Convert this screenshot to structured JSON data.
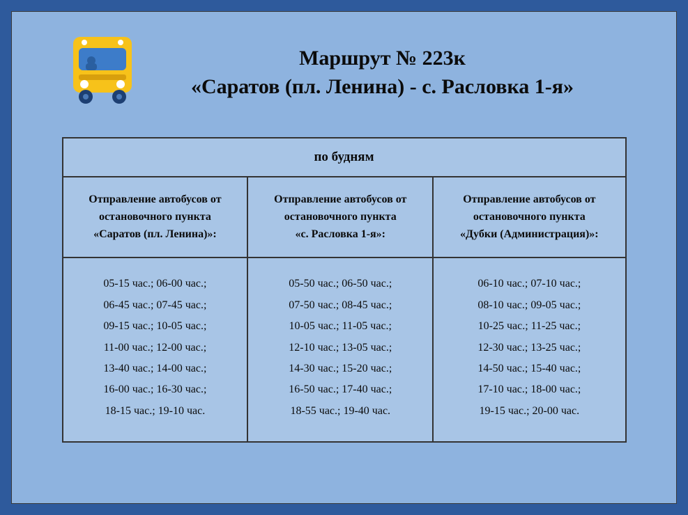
{
  "colors": {
    "outer_frame": "#2e5a9c",
    "inner_bg": "#8eb3df",
    "table_bg": "#a8c5e6",
    "border": "#333333",
    "text": "#0b0b0b",
    "bus_body": "#f7c21a",
    "bus_window": "#3d7cc9",
    "bus_wheel": "#1d3f72"
  },
  "title": {
    "line1": "Маршрут  № 223к",
    "line2": "«Саратов (пл. Ленина) - с. Расловка 1-я»"
  },
  "days_header": "по будням",
  "columns": [
    {
      "header_l1": "Отправление автобусов от",
      "header_l2": "остановочного пункта",
      "header_l3": "«Саратов (пл. Ленина)»:",
      "times": [
        "05-15 час.; 06-00 час.;",
        "06-45 час.; 07-45 час.;",
        "09-15 час.; 10-05 час.;",
        "11-00 час.; 12-00 час.;",
        "13-40 час.; 14-00 час.;",
        "16-00 час.; 16-30 час.;",
        "18-15 час.; 19-10 час."
      ]
    },
    {
      "header_l1": "Отправление автобусов от",
      "header_l2": "остановочного пункта",
      "header_l3": "«с. Расловка 1-я»:",
      "times": [
        "05-50 час.; 06-50 час.;",
        "07-50 час.; 08-45 час.;",
        "10-05 час.; 11-05 час.;",
        "12-10 час.; 13-05 час.;",
        "14-30 час.; 15-20 час.;",
        "16-50 час.; 17-40 час.;",
        "18-55 час.; 19-40 час."
      ]
    },
    {
      "header_l1": "Отправление автобусов от",
      "header_l2": "остановочного пункта",
      "header_l3": "«Дубки (Администрация)»:",
      "times": [
        "06-10 час.; 07-10 час.;",
        "08-10 час.; 09-05 час.;",
        "10-25 час.;  11-25 час.;",
        "12-30 час.;  13-25 час.;",
        "14-50 час.; 15-40 час.;",
        "17-10 час.;  18-00 час.;",
        "19-15 час.;  20-00 час."
      ]
    }
  ]
}
